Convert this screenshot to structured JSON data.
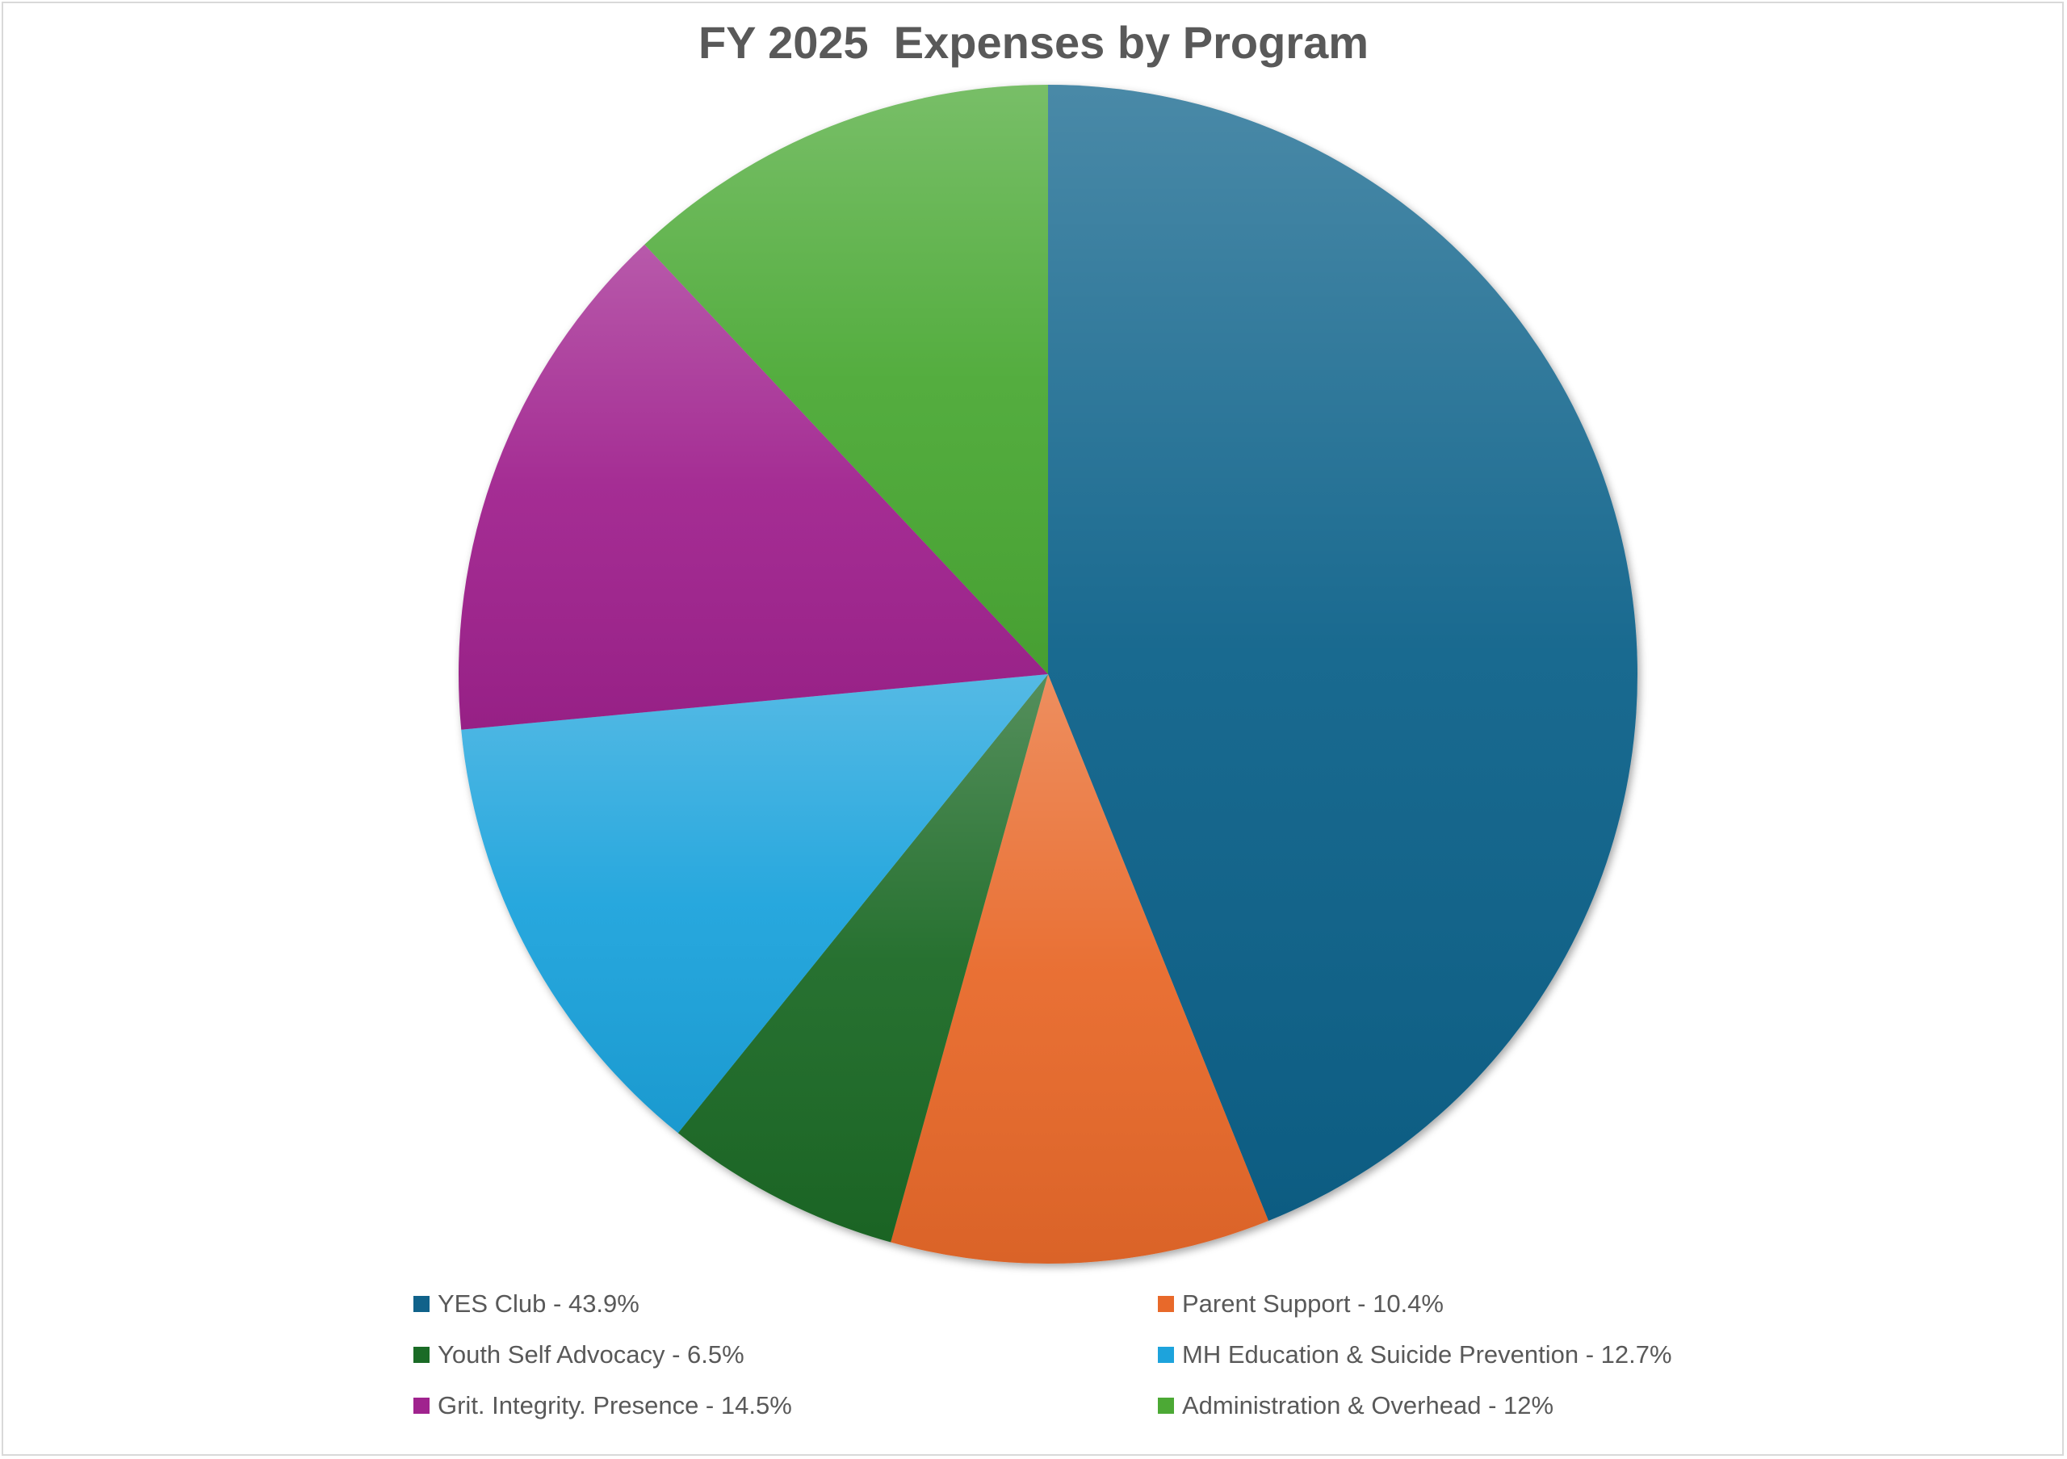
{
  "chart_data": {
    "type": "pie",
    "title": "FY 2025  Expenses by Program",
    "slices": [
      {
        "label": "YES Club - 43.9%",
        "value": 43.9,
        "color": "#10628A"
      },
      {
        "label": "Parent Support - 10.4%",
        "value": 10.4,
        "color": "#E8692A"
      },
      {
        "label": "Youth Self Advocacy - 6.5%",
        "value": 6.5,
        "color": "#1A6B26"
      },
      {
        "label": "MH Education & Suicide Prevention - 12.7%",
        "value": 12.7,
        "color": "#1DA3DC"
      },
      {
        "label": "Grit. Integrity. Presence - 14.5%",
        "value": 14.5,
        "color": "#A0238E"
      },
      {
        "label": "Administration & Overhead - 12%",
        "value": 12,
        "color": "#4CA935"
      }
    ],
    "legend_position": "bottom"
  }
}
